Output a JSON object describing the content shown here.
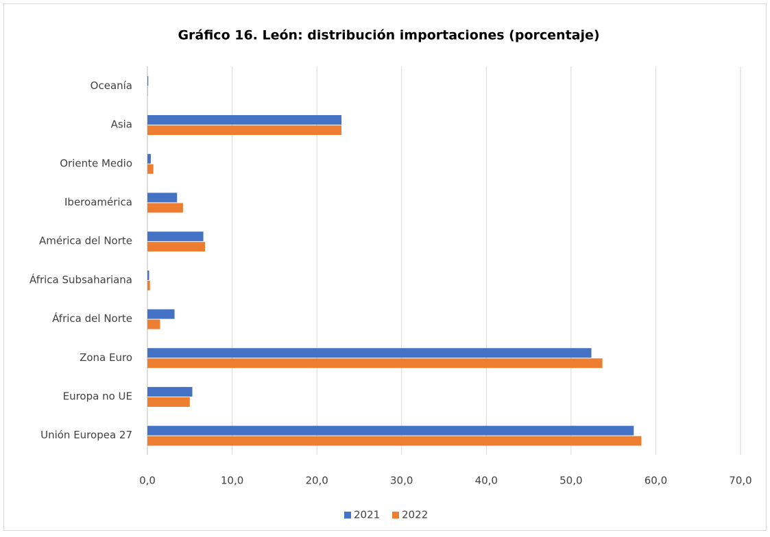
{
  "chart_data": {
    "type": "hbar",
    "title": "Gráfico 16. León: distribución importaciones (porcentaje)",
    "categories": [
      "Oceanía",
      "Asia",
      "Oriente Medio",
      "Iberoamérica",
      "América del Norte",
      "África Subsahariana",
      "África del Norte",
      "Zona Euro",
      "Europa no UE",
      "Unión Europea 27"
    ],
    "series": [
      {
        "name": "2021",
        "color": "#4472c4",
        "values": [
          0.1,
          22.9,
          0.4,
          3.5,
          6.6,
          0.2,
          3.2,
          52.4,
          5.3,
          57.4
        ]
      },
      {
        "name": "2022",
        "color": "#ed7d31",
        "values": [
          0.05,
          22.9,
          0.7,
          4.2,
          6.8,
          0.3,
          1.5,
          53.7,
          5.0,
          58.3
        ]
      }
    ],
    "xlim": [
      0,
      70
    ],
    "xticks": [
      {
        "value": 0,
        "label": "0,0"
      },
      {
        "value": 10,
        "label": "10,0"
      },
      {
        "value": 20,
        "label": "20,0"
      },
      {
        "value": 30,
        "label": "30,0"
      },
      {
        "value": 40,
        "label": "40,0"
      },
      {
        "value": 50,
        "label": "50,0"
      },
      {
        "value": 60,
        "label": "60,0"
      },
      {
        "value": 70,
        "label": "70,0"
      }
    ],
    "grid": true,
    "legend": "bottom"
  }
}
